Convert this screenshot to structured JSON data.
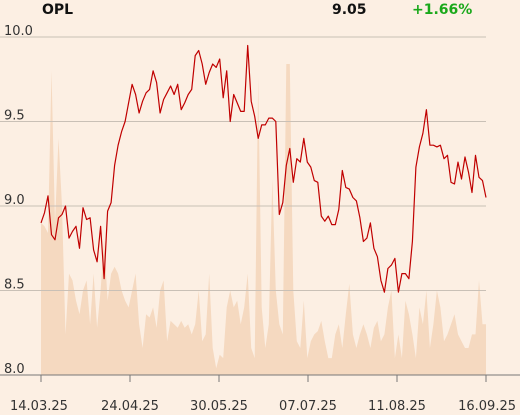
{
  "header": {
    "ticker": "OPL",
    "price": "9.05",
    "change": "+1.66%"
  },
  "colors": {
    "background": "#fcefe3",
    "line": "#c00000",
    "volume": "#f5d9c0",
    "change_up": "#1aa81a",
    "grid": "#c9c0b6"
  },
  "chart_data": {
    "type": "line",
    "title": "",
    "xlabel": "",
    "ylabel": "",
    "ylim": [
      8.0,
      10.0
    ],
    "yticks": [
      8.0,
      8.5,
      9.0,
      9.5,
      10.0
    ],
    "ytick_labels": [
      "8.0",
      "8.5",
      "9.0",
      "9.5",
      "10.0"
    ],
    "xticks": [
      "14.03.25",
      "24.04.25",
      "30.05.25",
      "07.07.25",
      "11.08.25",
      "16.09.25"
    ],
    "grid": true,
    "series": [
      {
        "values": [
          8.9,
          8.96,
          9.06,
          8.83,
          8.8,
          8.93,
          8.95,
          9.0,
          8.81,
          8.85,
          8.88,
          8.75,
          8.99,
          8.92,
          8.93,
          8.74,
          8.67,
          8.88,
          8.57,
          8.97,
          9.02,
          9.24,
          9.36,
          9.44,
          9.5,
          9.61,
          9.72,
          9.66,
          9.55,
          9.62,
          9.67,
          9.69,
          9.8,
          9.73,
          9.55,
          9.63,
          9.67,
          9.71,
          9.66,
          9.72,
          9.57,
          9.61,
          9.66,
          9.69,
          9.89,
          9.92,
          9.84,
          9.72,
          9.79,
          9.84,
          9.82,
          9.87,
          9.64,
          9.8,
          9.5,
          9.66,
          9.61,
          9.56,
          9.56,
          9.95,
          9.62,
          9.53,
          9.4,
          9.48,
          9.48,
          9.52,
          9.52,
          9.5,
          8.95,
          9.02,
          9.24,
          9.34,
          9.14,
          9.28,
          9.26,
          9.4,
          9.26,
          9.23,
          9.15,
          9.14,
          8.94,
          8.91,
          8.94,
          8.89,
          8.89,
          8.98,
          9.21,
          9.11,
          9.1,
          9.05,
          9.03,
          8.93,
          8.79,
          8.81,
          8.9,
          8.75,
          8.7,
          8.56,
          8.49,
          8.63,
          8.65,
          8.69,
          8.49,
          8.6,
          8.6,
          8.57,
          8.79,
          9.23,
          9.35,
          9.43,
          9.57,
          9.36,
          9.36,
          9.35,
          9.36,
          9.28,
          9.3,
          9.14,
          9.13,
          9.26,
          9.16,
          9.29,
          9.2,
          9.08,
          9.3,
          9.17,
          9.15,
          9.05
        ]
      }
    ],
    "volume_relative": [
      0.45,
      0.44,
      0.42,
      0.9,
      0.45,
      0.7,
      0.5,
      0.12,
      0.3,
      0.28,
      0.22,
      0.18,
      0.25,
      0.28,
      0.15,
      0.3,
      0.14,
      0.25,
      0.4,
      0.22,
      0.3,
      0.32,
      0.3,
      0.25,
      0.22,
      0.2,
      0.25,
      0.3,
      0.15,
      0.08,
      0.18,
      0.17,
      0.2,
      0.14,
      0.25,
      0.28,
      0.1,
      0.16,
      0.15,
      0.14,
      0.16,
      0.14,
      0.15,
      0.12,
      0.15,
      0.25,
      0.1,
      0.12,
      0.3,
      0.08,
      0.02,
      0.06,
      0.05,
      0.2,
      0.25,
      0.2,
      0.22,
      0.15,
      0.2,
      0.3,
      0.08,
      0.05,
      0.88,
      0.2,
      0.08,
      0.15,
      0.58,
      0.25,
      0.15,
      0.12,
      0.92,
      0.92,
      0.25,
      0.1,
      0.08,
      0.22,
      0.05,
      0.1,
      0.12,
      0.13,
      0.16,
      0.1,
      0.05,
      0.05,
      0.12,
      0.15,
      0.08,
      0.18,
      0.27,
      0.12,
      0.08,
      0.12,
      0.15,
      0.12,
      0.08,
      0.14,
      0.16,
      0.1,
      0.12,
      0.2,
      0.25,
      0.05,
      0.12,
      0.05,
      0.22,
      0.18,
      0.12,
      0.05,
      0.2,
      0.15,
      0.25,
      0.08,
      0.15,
      0.25,
      0.2,
      0.1,
      0.12,
      0.15,
      0.18,
      0.12,
      0.1,
      0.08,
      0.08,
      0.12,
      0.12,
      0.28,
      0.15,
      0.15
    ]
  }
}
